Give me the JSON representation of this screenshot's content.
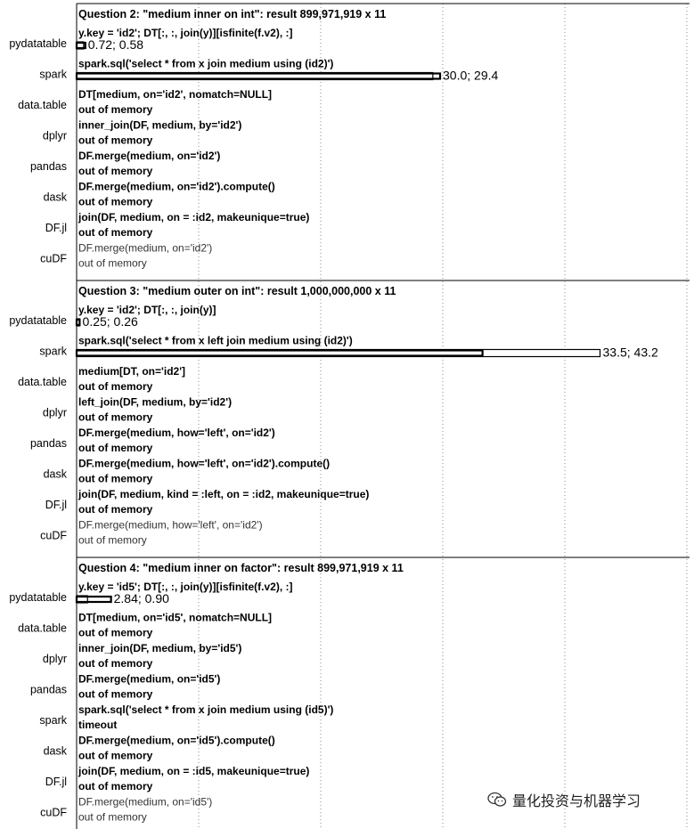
{
  "chart_data": {
    "type": "bar",
    "orientation": "horizontal",
    "grid": true,
    "panels": [
      {
        "title": "Question 2: \"medium inner on int\"",
        "result": ": result 899,971,919 x 11",
        "rows": [
          {
            "solution": "pydatatable",
            "code": "y.key = 'id2'; DT[:, :, join(y)][isfinite(f.v2), :]",
            "status": "",
            "run1": 0.72,
            "run2": 0.58,
            "label": "0.72; 0.58"
          },
          {
            "solution": "spark",
            "code": "spark.sql('select * from x join medium using (id2)')",
            "status": "",
            "run1": 30.0,
            "run2": 29.4,
            "label": "30.0; 29.4"
          },
          {
            "solution": "data.table",
            "code": "DT[medium, on='id2', nomatch=NULL]",
            "status": "out of memory"
          },
          {
            "solution": "dplyr",
            "code": "inner_join(DF, medium, by='id2')",
            "status": "out of memory"
          },
          {
            "solution": "pandas",
            "code": "DF.merge(medium, on='id2')",
            "status": "out of memory"
          },
          {
            "solution": "dask",
            "code": "DF.merge(medium, on='id2').compute()",
            "status": "out of memory"
          },
          {
            "solution": "DF.jl",
            "code": "join(DF, medium, on = :id2, makeunique=true)",
            "status": "out of memory"
          },
          {
            "solution": "cuDF",
            "code": "DF.merge(medium, on='id2')",
            "status": "out of memory"
          }
        ]
      },
      {
        "title": "Question 3: \"medium outer on int\"",
        "result": ": result 1,000,000,000 x 11",
        "rows": [
          {
            "solution": "pydatatable",
            "code": "y.key = 'id2'; DT[:, :, join(y)]",
            "status": "",
            "run1": 0.25,
            "run2": 0.26,
            "label": "0.25; 0.26"
          },
          {
            "solution": "spark",
            "code": "spark.sql('select * from x left join medium using (id2)')",
            "status": "",
            "run1": 33.5,
            "run2": 43.2,
            "label": "33.5; 43.2"
          },
          {
            "solution": "data.table",
            "code": "medium[DT, on='id2']",
            "status": "out of memory"
          },
          {
            "solution": "dplyr",
            "code": "left_join(DF, medium, by='id2')",
            "status": "out of memory"
          },
          {
            "solution": "pandas",
            "code": "DF.merge(medium, how='left', on='id2')",
            "status": "out of memory"
          },
          {
            "solution": "dask",
            "code": "DF.merge(medium, how='left', on='id2').compute()",
            "status": "out of memory"
          },
          {
            "solution": "DF.jl",
            "code": "join(DF, medium, kind = :left, on = :id2, makeunique=true)",
            "status": "out of memory"
          },
          {
            "solution": "cuDF",
            "code": "DF.merge(medium, how='left', on='id2')",
            "status": "out of memory"
          }
        ]
      },
      {
        "title": "Question 4: \"medium inner on factor\"",
        "result": ": result 899,971,919 x 11",
        "rows": [
          {
            "solution": "pydatatable",
            "code": "y.key = 'id5'; DT[:, :, join(y)][isfinite(f.v2), :]",
            "status": "",
            "run1": 2.84,
            "run2": 0.9,
            "label": "2.84; 0.90"
          },
          {
            "solution": "data.table",
            "code": "DT[medium, on='id5', nomatch=NULL]",
            "status": "out of memory"
          },
          {
            "solution": "dplyr",
            "code": "inner_join(DF, medium, by='id5')",
            "status": "out of memory"
          },
          {
            "solution": "pandas",
            "code": "DF.merge(medium, on='id5')",
            "status": "out of memory"
          },
          {
            "solution": "spark",
            "code": "spark.sql('select * from x join medium using (id5)')",
            "status": "timeout"
          },
          {
            "solution": "dask",
            "code": "DF.merge(medium, on='id5').compute()",
            "status": "out of memory"
          },
          {
            "solution": "DF.jl",
            "code": "join(DF, medium, on = :id5, makeunique=true)",
            "status": "out of memory"
          },
          {
            "solution": "cuDF",
            "code": "DF.merge(medium, on='id5')",
            "status": "out of memory"
          }
        ]
      }
    ]
  },
  "watermark": {
    "text": "量化投资与机器学习",
    "icon": "wechat-icon"
  }
}
